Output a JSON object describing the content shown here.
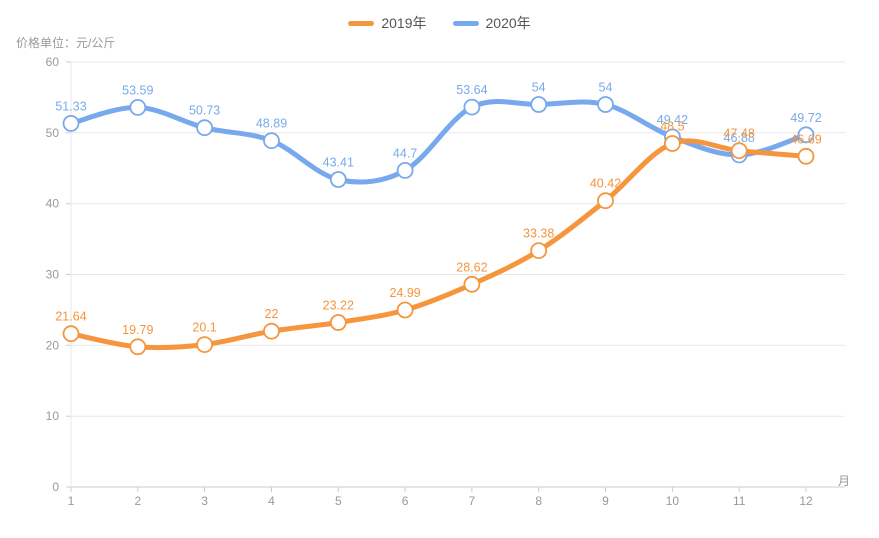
{
  "legend": {
    "items": [
      {
        "label": "2019年",
        "color": "#f5953d"
      },
      {
        "label": "2020年",
        "color": "#78a9ec"
      }
    ]
  },
  "chart_data": {
    "type": "line",
    "title": "价格单位：元/公斤",
    "xlabel": "月",
    "ylabel": "",
    "categories": [
      1,
      2,
      3,
      4,
      5,
      6,
      7,
      8,
      9,
      10,
      11,
      12
    ],
    "series": [
      {
        "name": "2019年",
        "color": "#f5953d",
        "values": [
          21.64,
          19.79,
          20.1,
          22,
          23.22,
          24.99,
          28.62,
          33.38,
          40.42,
          48.5,
          47.48,
          46.69
        ]
      },
      {
        "name": "2020年",
        "color": "#78a9ec",
        "values": [
          51.33,
          53.59,
          50.73,
          48.89,
          43.41,
          44.7,
          53.64,
          54,
          54,
          49.42,
          46.88,
          49.72
        ]
      }
    ],
    "ylim": [
      0,
      60
    ],
    "yticks": [
      0,
      10,
      20,
      30,
      40,
      50,
      60
    ],
    "grid": true,
    "smooth": true,
    "legend_position": "top-center",
    "colors": {
      "grid_line": "#e9e9e9",
      "axis_line": "#cccccc",
      "tick_text": "#999999",
      "background": "#ffffff",
      "point_fill": "#ffffff"
    }
  }
}
